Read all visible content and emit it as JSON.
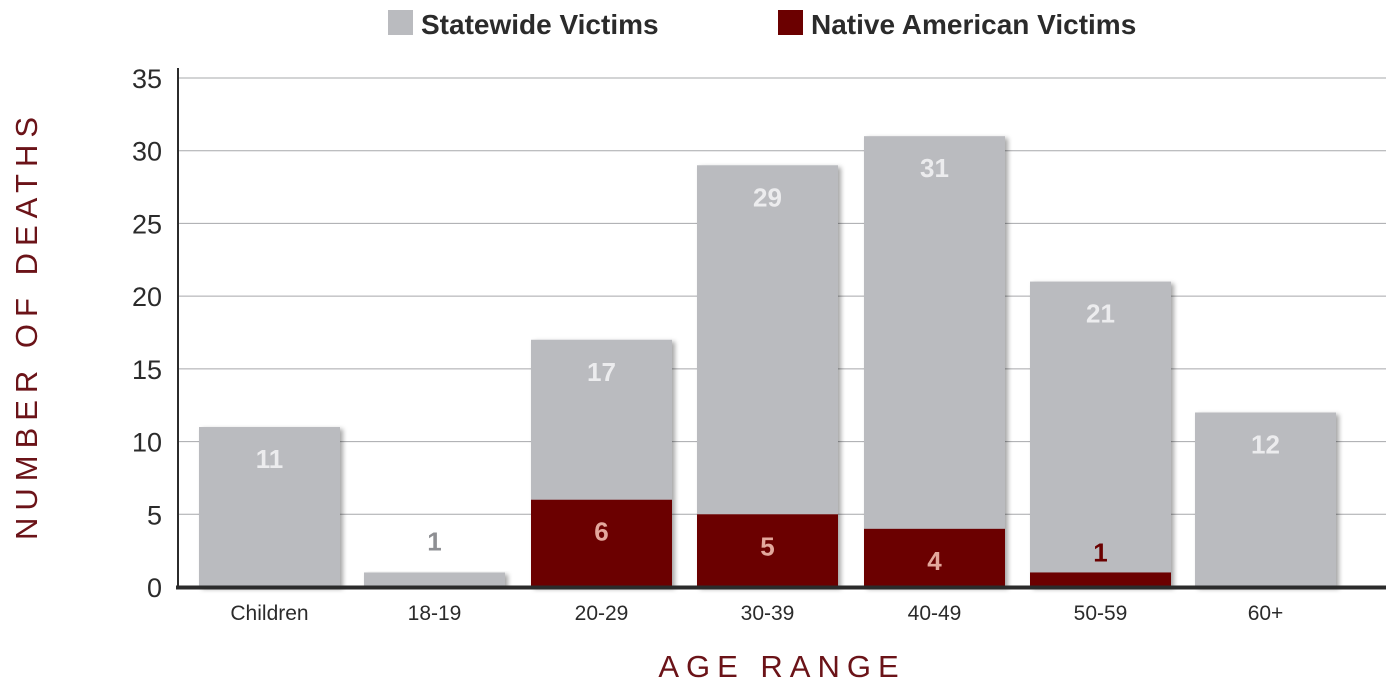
{
  "chart_data": {
    "type": "bar",
    "stacked": true,
    "categories": [
      "Children",
      "18-19",
      "20-29",
      "30-39",
      "40-49",
      "50-59",
      "60+"
    ],
    "series": [
      {
        "name": "Statewide Victims",
        "color": "#babbbf",
        "values": [
          11,
          1,
          17,
          29,
          31,
          21,
          12
        ]
      },
      {
        "name": "Native American Victims",
        "color": "#6b0000",
        "values": [
          0,
          0,
          6,
          5,
          4,
          1,
          0
        ]
      }
    ],
    "xlabel": "AGE RANGE",
    "ylabel": "NUMBER OF DEATHS",
    "ylim": [
      0,
      35
    ],
    "yticks": [
      0,
      5,
      10,
      15,
      20,
      25,
      30,
      35
    ],
    "grid": true,
    "legend": "top-center",
    "label_colors": {
      "statewide_on_bar": "#ececee",
      "statewide_small": "#8e8f93",
      "native_on_bar": "#e3a79c",
      "native_small": "#6b0000",
      "axis_title": "#6b1318"
    }
  }
}
